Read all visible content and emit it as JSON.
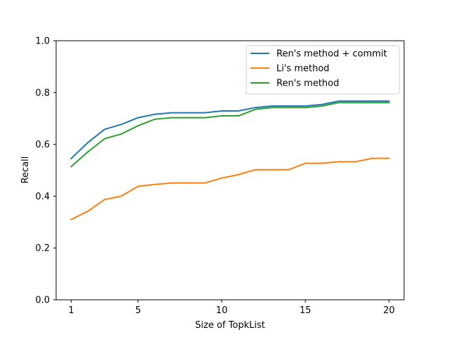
{
  "chart_data": {
    "type": "line",
    "title": "",
    "xlabel": "Size of TopkList",
    "ylabel": "Recall",
    "xlim": [
      0.1,
      20.9
    ],
    "ylim": [
      0.0,
      1.0
    ],
    "xticks": [
      1,
      5,
      10,
      15,
      20
    ],
    "yticks": [
      0.0,
      0.2,
      0.4,
      0.6,
      0.8,
      1.0
    ],
    "xtick_labels": [
      "1",
      "5",
      "10",
      "15",
      "20"
    ],
    "ytick_labels": [
      "0.0",
      "0.2",
      "0.4",
      "0.6",
      "0.8",
      "1.0"
    ],
    "grid": false,
    "legend_position": "top-right",
    "x": [
      1,
      2,
      3,
      4,
      5,
      6,
      7,
      8,
      9,
      10,
      11,
      12,
      13,
      14,
      15,
      16,
      17,
      18,
      19,
      20
    ],
    "series": [
      {
        "name": "Ren's method + commit",
        "color": "#1f77b4",
        "values": [
          0.545,
          0.607,
          0.658,
          0.677,
          0.703,
          0.716,
          0.722,
          0.722,
          0.722,
          0.729,
          0.729,
          0.742,
          0.748,
          0.748,
          0.748,
          0.754,
          0.767,
          0.767,
          0.767,
          0.767
        ]
      },
      {
        "name": "Li's method",
        "color": "#ff7f0e",
        "values": [
          0.31,
          0.342,
          0.387,
          0.4,
          0.438,
          0.445,
          0.451,
          0.451,
          0.451,
          0.47,
          0.483,
          0.502,
          0.502,
          0.502,
          0.527,
          0.527,
          0.533,
          0.533,
          0.546,
          0.546
        ]
      },
      {
        "name": "Ren's method",
        "color": "#2ca02c",
        "values": [
          0.514,
          0.571,
          0.622,
          0.64,
          0.672,
          0.697,
          0.703,
          0.703,
          0.703,
          0.71,
          0.71,
          0.735,
          0.742,
          0.742,
          0.742,
          0.748,
          0.761,
          0.761,
          0.761,
          0.761
        ]
      }
    ]
  }
}
